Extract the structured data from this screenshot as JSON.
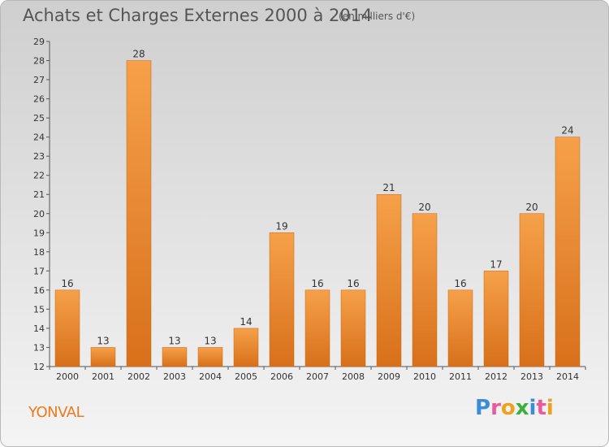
{
  "title": "Achats et Charges Externes 2000 à 2014",
  "subtitle": "(en milliers d'€)",
  "commune": "YONVAL",
  "logo": {
    "letters": [
      {
        "ch": "P",
        "color": "#3b8ed6"
      },
      {
        "ch": "r",
        "color": "#e85a9a"
      },
      {
        "ch": "o",
        "color": "#f0a020"
      },
      {
        "ch": "x",
        "color": "#3bb03b"
      },
      {
        "ch": "i",
        "color": "#3b8ed6"
      },
      {
        "ch": "t",
        "color": "#e85a9a"
      },
      {
        "ch": "i",
        "color": "#f0a020"
      }
    ]
  },
  "chart_data": {
    "type": "bar",
    "title": "Achats et Charges Externes 2000 à 2014",
    "subtitle": "(en milliers d'€)",
    "categories": [
      "2000",
      "2001",
      "2002",
      "2003",
      "2004",
      "2005",
      "2006",
      "2007",
      "2008",
      "2009",
      "2010",
      "2011",
      "2012",
      "2013",
      "2014"
    ],
    "values": [
      16,
      13,
      28,
      13,
      13,
      14,
      19,
      16,
      16,
      21,
      20,
      16,
      17,
      20,
      24
    ],
    "ylim": [
      12,
      29
    ],
    "yticks": [
      12,
      13,
      14,
      15,
      16,
      17,
      18,
      19,
      20,
      21,
      22,
      23,
      24,
      25,
      26,
      27,
      28,
      29
    ],
    "grid": false,
    "bar_color_top": "#f6a04a",
    "bar_color_bottom": "#d8701a"
  }
}
